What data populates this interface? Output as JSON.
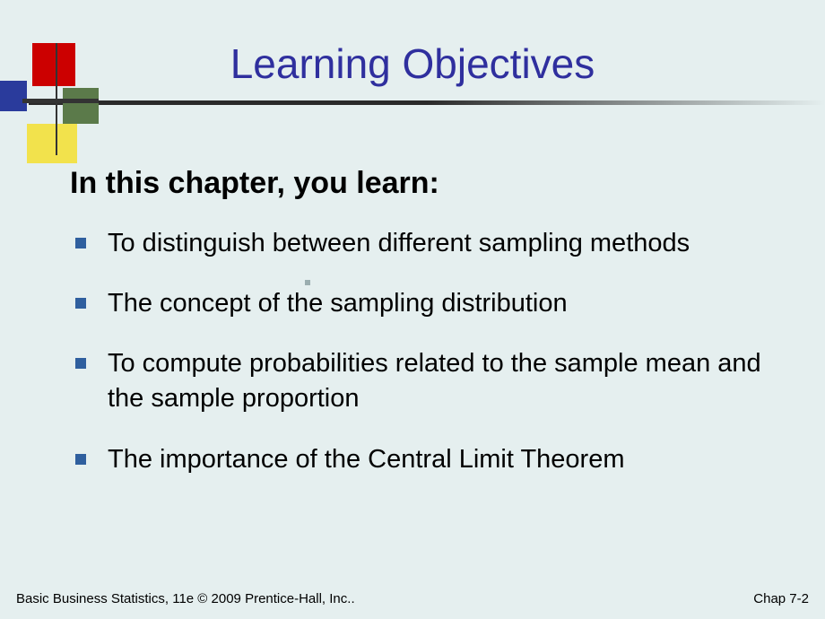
{
  "slide": {
    "title": "Learning Objectives",
    "intro": "In this chapter, you learn:",
    "bullets": [
      "To distinguish between different sampling methods",
      "The concept of the sampling distribution",
      "To compute probabilities related to the sample mean and the sample proportion",
      "The importance of the Central Limit Theorem"
    ],
    "footer_left": "Basic Business Statistics, 11e © 2009 Prentice-Hall, Inc..",
    "footer_right": "Chap 7-2"
  },
  "style": {
    "background_color": "#e5efef",
    "title_color": "#2f2f9e",
    "title_fontsize": 46,
    "intro_fontsize": 34,
    "bullet_fontsize": 29,
    "bullet_marker_color": "#2f5f9e",
    "footer_fontsize": 15,
    "decoration": {
      "red": "#cc0000",
      "blue": "#2a3b9c",
      "olive": "#5b7a4a",
      "yellow": "#f2e24c",
      "line": "#333333"
    }
  }
}
